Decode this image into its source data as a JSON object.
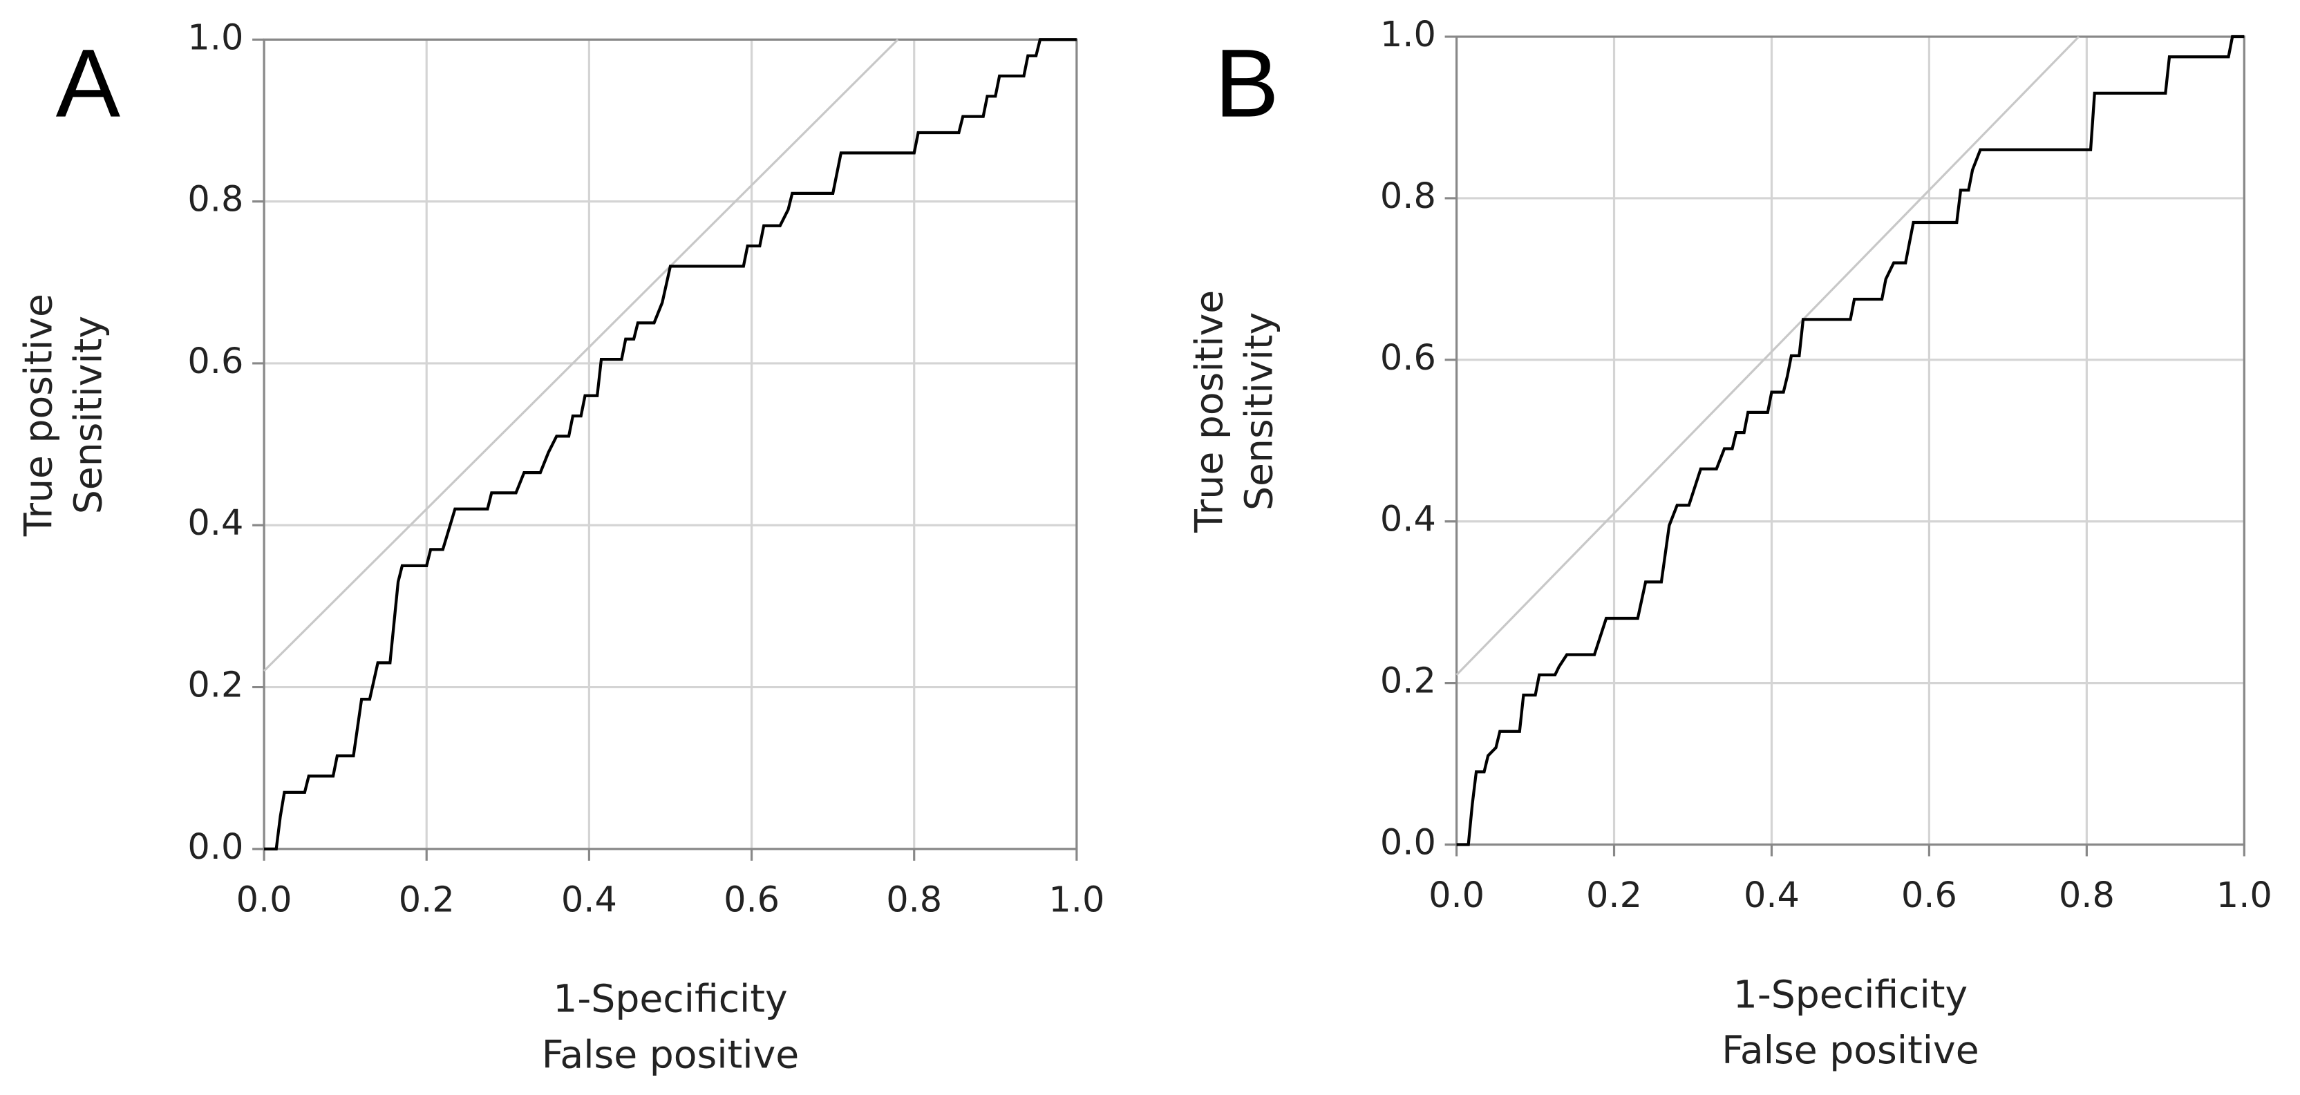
{
  "chart_data": [
    {
      "type": "line",
      "panel_label": "A",
      "xlabel": [
        "1-Specificity",
        "False positive"
      ],
      "ylabel": [
        "True positive",
        "Sensitivity"
      ],
      "xlim": [
        0,
        1
      ],
      "ylim": [
        0,
        1
      ],
      "xticks": [
        {
          "value": 0,
          "label": "0.0"
        },
        0.2,
        0.4,
        0.6,
        0.8,
        {
          "value": 1,
          "label": "1.0"
        }
      ],
      "yticks": [
        {
          "value": 0,
          "label": "0.0"
        },
        0.2,
        0.4,
        0.6,
        0.8,
        {
          "value": 1,
          "label": "1.0"
        }
      ],
      "grid": true,
      "series": [
        {
          "color": "#000000",
          "x": [
            0,
            0.015,
            0.02,
            0.025,
            0.05,
            0.055,
            0.085,
            0.09,
            0.11,
            0.12,
            0.13,
            0.14,
            0.155,
            0.165,
            0.17,
            0.2,
            0.205,
            0.22,
            0.235,
            0.275,
            0.28,
            0.31,
            0.32,
            0.34,
            0.35,
            0.36,
            0.375,
            0.38,
            0.39,
            0.395,
            0.41,
            0.415,
            0.44,
            0.445,
            0.455,
            0.46,
            0.48,
            0.49,
            0.5,
            0.59,
            0.595,
            0.61,
            0.615,
            0.635,
            0.645,
            0.65,
            0.7,
            0.71,
            0.8,
            0.805,
            0.855,
            0.86,
            0.885,
            0.89,
            0.9,
            0.905,
            0.935,
            0.94,
            0.95,
            0.955,
            1.0
          ],
          "y": [
            0,
            0,
            0.04,
            0.07,
            0.07,
            0.09,
            0.09,
            0.115,
            0.115,
            0.185,
            0.185,
            0.23,
            0.23,
            0.33,
            0.35,
            0.35,
            0.37,
            0.37,
            0.42,
            0.42,
            0.44,
            0.44,
            0.465,
            0.465,
            0.49,
            0.51,
            0.51,
            0.535,
            0.535,
            0.56,
            0.56,
            0.605,
            0.605,
            0.63,
            0.63,
            0.65,
            0.65,
            0.675,
            0.72,
            0.72,
            0.745,
            0.745,
            0.77,
            0.77,
            0.79,
            0.81,
            0.81,
            0.86,
            0.86,
            0.885,
            0.885,
            0.905,
            0.905,
            0.93,
            0.93,
            0.955,
            0.955,
            0.98,
            0.98,
            1.0,
            1.0
          ]
        }
      ],
      "reference_line": {
        "color": "#c8c8c8",
        "x": [
          0,
          0.78
        ],
        "y": [
          0.22,
          1.0
        ]
      }
    },
    {
      "type": "line",
      "panel_label": "B",
      "xlabel": [
        "1-Specificity",
        "False positive"
      ],
      "ylabel": [
        "True positive",
        "Sensitivity"
      ],
      "xlim": [
        0,
        1
      ],
      "ylim": [
        0,
        1
      ],
      "xticks": [
        {
          "value": 0,
          "label": "0.0"
        },
        0.2,
        0.4,
        0.6,
        0.8,
        {
          "value": 1,
          "label": "1.0"
        }
      ],
      "yticks": [
        {
          "value": 0,
          "label": "0.0"
        },
        0.2,
        0.4,
        0.6,
        0.8,
        {
          "value": 1,
          "label": "1.0"
        }
      ],
      "grid": true,
      "series": [
        {
          "color": "#000000",
          "x": [
            0,
            0.015,
            0.02,
            0.025,
            0.035,
            0.04,
            0.05,
            0.055,
            0.08,
            0.085,
            0.1,
            0.105,
            0.125,
            0.13,
            0.14,
            0.175,
            0.19,
            0.23,
            0.24,
            0.26,
            0.27,
            0.28,
            0.295,
            0.31,
            0.33,
            0.34,
            0.35,
            0.355,
            0.365,
            0.37,
            0.395,
            0.4,
            0.415,
            0.42,
            0.425,
            0.435,
            0.44,
            0.5,
            0.505,
            0.54,
            0.545,
            0.555,
            0.57,
            0.575,
            0.58,
            0.635,
            0.64,
            0.65,
            0.655,
            0.665,
            0.805,
            0.81,
            0.9,
            0.905,
            0.98,
            0.985,
            1
          ],
          "y": [
            0,
            0,
            0.05,
            0.09,
            0.09,
            0.11,
            0.12,
            0.14,
            0.14,
            0.185,
            0.185,
            0.21,
            0.21,
            0.22,
            0.235,
            0.235,
            0.28,
            0.28,
            0.325,
            0.325,
            0.395,
            0.42,
            0.42,
            0.465,
            0.465,
            0.49,
            0.49,
            0.51,
            0.51,
            0.535,
            0.535,
            0.56,
            0.56,
            0.58,
            0.605,
            0.605,
            0.65,
            0.65,
            0.675,
            0.675,
            0.7,
            0.72,
            0.72,
            0.745,
            0.77,
            0.77,
            0.81,
            0.81,
            0.835,
            0.86,
            0.86,
            0.93,
            0.93,
            0.975,
            0.975,
            1,
            1
          ]
        }
      ],
      "reference_line": {
        "color": "#c8c8c8",
        "x": [
          0,
          0.79
        ],
        "y": [
          0.21,
          1.0
        ]
      }
    }
  ]
}
